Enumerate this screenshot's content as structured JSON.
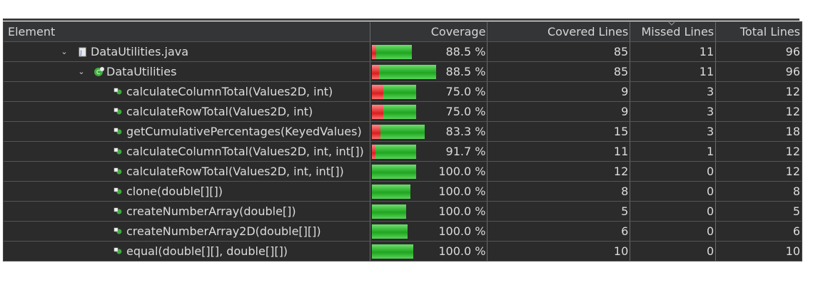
{
  "columns": {
    "element": "Element",
    "coverage": "Coverage",
    "covered": "Covered Lines",
    "missed": "Missed Lines",
    "total": "Total Lines"
  },
  "rows": [
    {
      "name": "DataUtilities.java",
      "level": 1,
      "icon": "java-file-icon",
      "expanded": true,
      "coverage": "88.5 %",
      "cov": 0.885,
      "covered": "85",
      "missed": "11",
      "total": "96"
    },
    {
      "name": "DataUtilities",
      "level": 2,
      "icon": "class-icon",
      "expanded": true,
      "coverage": "88.5 %",
      "cov": 0.885,
      "covered": "85",
      "missed": "11",
      "total": "96"
    },
    {
      "name": "calculateColumnTotal(Values2D, int)",
      "level": 3,
      "icon": "method-icon",
      "coverage": "75.0 %",
      "cov": 0.75,
      "covered": "9",
      "missed": "3",
      "total": "12"
    },
    {
      "name": "calculateRowTotal(Values2D, int)",
      "level": 3,
      "icon": "method-icon",
      "coverage": "75.0 %",
      "cov": 0.75,
      "covered": "9",
      "missed": "3",
      "total": "12"
    },
    {
      "name": "getCumulativePercentages(KeyedValues)",
      "level": 3,
      "icon": "method-icon",
      "coverage": "83.3 %",
      "cov": 0.833,
      "covered": "15",
      "missed": "3",
      "total": "18"
    },
    {
      "name": "calculateColumnTotal(Values2D, int, int[])",
      "level": 3,
      "icon": "method-icon",
      "coverage": "91.7 %",
      "cov": 0.917,
      "covered": "11",
      "missed": "1",
      "total": "12"
    },
    {
      "name": "calculateRowTotal(Values2D, int, int[])",
      "level": 3,
      "icon": "method-icon",
      "coverage": "100.0 %",
      "cov": 1.0,
      "covered": "12",
      "missed": "0",
      "total": "12"
    },
    {
      "name": "clone(double[][])",
      "level": 3,
      "icon": "method-icon",
      "coverage": "100.0 %",
      "cov": 1.0,
      "covered": "8",
      "missed": "0",
      "total": "8"
    },
    {
      "name": "createNumberArray(double[])",
      "level": 3,
      "icon": "method-icon",
      "coverage": "100.0 %",
      "cov": 1.0,
      "covered": "5",
      "missed": "0",
      "total": "5"
    },
    {
      "name": "createNumberArray2D(double[][])",
      "level": 3,
      "icon": "method-icon",
      "coverage": "100.0 %",
      "cov": 1.0,
      "covered": "6",
      "missed": "0",
      "total": "6"
    },
    {
      "name": "equal(double[][], double[][])",
      "level": 3,
      "icon": "method-icon",
      "coverage": "100.0 %",
      "cov": 1.0,
      "covered": "10",
      "missed": "0",
      "total": "10"
    }
  ],
  "colors": {
    "covered": "#1fa51f",
    "missed": "#d91e1e",
    "background": "#2b2b2b"
  }
}
